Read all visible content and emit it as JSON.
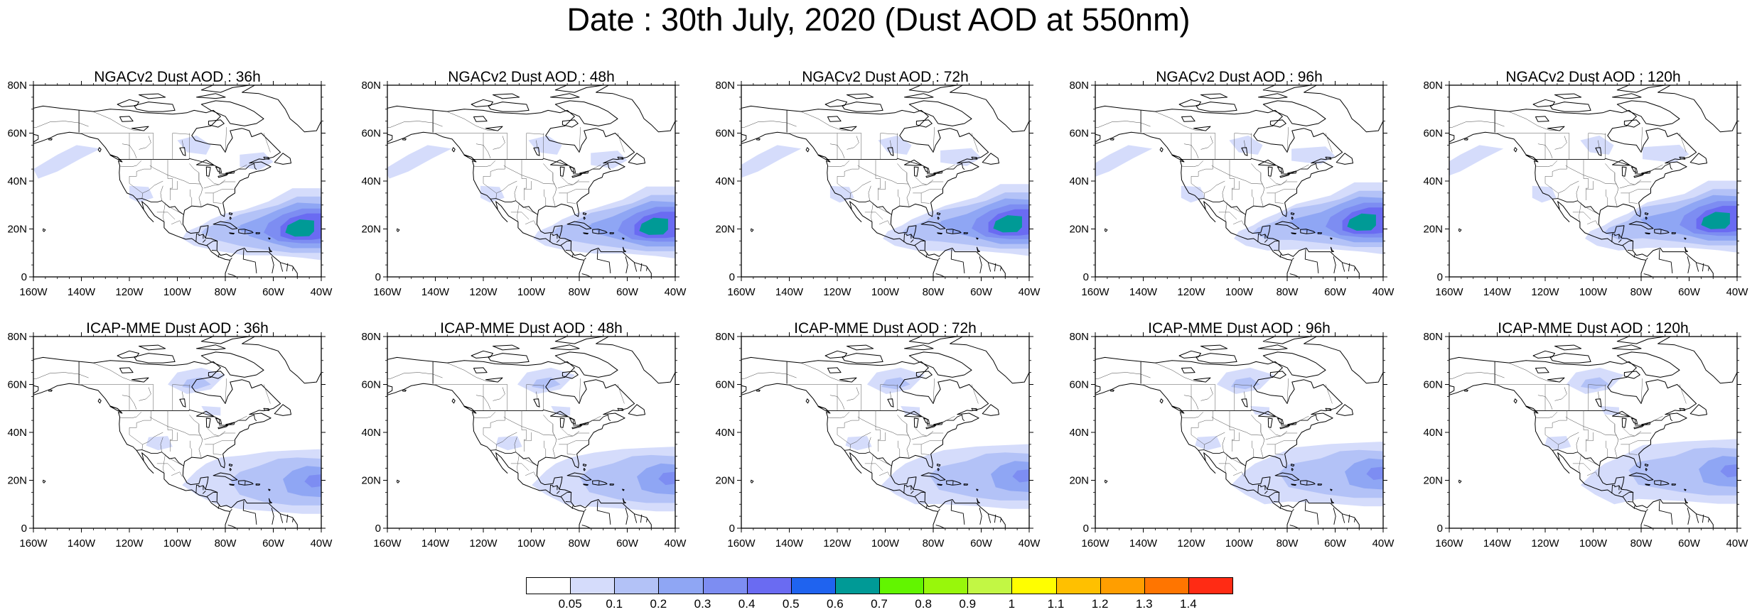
{
  "title": "Date : 30th July, 2020 (Dust AOD at 550nm)",
  "panels": [
    {
      "title": "NGACv2 Dust AOD : 36h",
      "model": "ngac",
      "shift": 0
    },
    {
      "title": "NGACv2 Dust AOD : 48h",
      "model": "ngac",
      "shift": 2
    },
    {
      "title": "NGACv2 Dust AOD : 72h",
      "model": "ngac",
      "shift": 5
    },
    {
      "title": "NGACv2 Dust AOD : 96h",
      "model": "ngac",
      "shift": 7
    },
    {
      "title": "NGACv2 Dust AOD : 120h",
      "model": "ngac",
      "shift": 9
    },
    {
      "title": "ICAP-MME Dust AOD : 36h",
      "model": "icap",
      "shift": 0
    },
    {
      "title": "ICAP-MME Dust AOD : 48h",
      "model": "icap",
      "shift": 3
    },
    {
      "title": "ICAP-MME Dust AOD : 72h",
      "model": "icap",
      "shift": 6
    },
    {
      "title": "ICAP-MME Dust AOD : 96h",
      "model": "icap",
      "shift": 9
    },
    {
      "title": "ICAP-MME Dust AOD : 120h",
      "model": "icap",
      "shift": 12
    }
  ],
  "axes": {
    "x_ticks": [
      "160W",
      "140W",
      "120W",
      "100W",
      "80W",
      "60W",
      "40W"
    ],
    "y_ticks": [
      "0",
      "20N",
      "40N",
      "60N",
      "80N"
    ],
    "lon_range": [
      -160,
      -40
    ],
    "lat_range": [
      0,
      80
    ]
  },
  "colorbar": {
    "colors": [
      "#ffffff",
      "#d5dcfb",
      "#b3c2f7",
      "#8fa6f4",
      "#7d8df2",
      "#6a6bf2",
      "#1f63ef",
      "#009a96",
      "#62f500",
      "#98f70b",
      "#c2f744",
      "#fffe00",
      "#ffc000",
      "#ff9e00",
      "#ff7500",
      "#ff2b14"
    ],
    "labels": [
      "0.05",
      "0.1",
      "0.2",
      "0.3",
      "0.4",
      "0.5",
      "0.6",
      "0.7",
      "0.8",
      "0.9",
      "1",
      "1.1",
      "1.2",
      "1.3",
      "1.4"
    ]
  }
}
